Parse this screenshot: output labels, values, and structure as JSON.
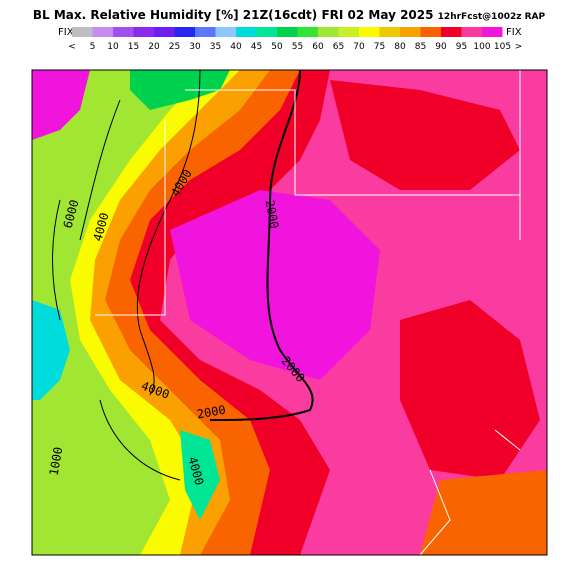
{
  "header": {
    "title": "BL Max. Relative Humidity [%] 21Z(16cdt) FRI 02 May 2025",
    "subtitle": "12hrFcst@1002z RAP",
    "fix_left": "FIX",
    "fix_right": "FIX"
  },
  "legend": {
    "labels": [
      "<",
      "5",
      "10",
      "15",
      "20",
      "25",
      "30",
      "35",
      "40",
      "45",
      "50",
      "55",
      "60",
      "65",
      "70",
      "75",
      "80",
      "85",
      "90",
      "95",
      "100",
      "105",
      ">"
    ],
    "colors": [
      "#bebebe",
      "#c88cf0",
      "#a050f0",
      "#8c28f0",
      "#6e1ef0",
      "#2828f0",
      "#5a78ff",
      "#8cc8ff",
      "#00dcdc",
      "#00e696",
      "#00d250",
      "#32e632",
      "#a0e632",
      "#c8f028",
      "#fafa00",
      "#f0c800",
      "#faa000",
      "#fa6400",
      "#f00028",
      "#fa3ca0",
      "#f014dc"
    ]
  },
  "contours": {
    "labels": [
      "6000",
      "4000",
      "4000",
      "2000",
      "2000",
      "4000",
      "2000",
      "1000",
      "4000"
    ]
  }
}
